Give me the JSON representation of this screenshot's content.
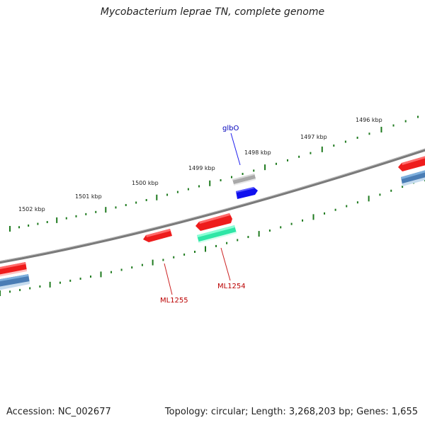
{
  "title": "Mycobacterium leprae TN, complete genome",
  "footer": {
    "accession": "Accession: NC_002677",
    "summary": "Topology: circular; Length: 3,268,203 bp; Genes: 1,655"
  },
  "ruler_labels": [
    "1502 kbp",
    "1501 kbp",
    "1500 kbp",
    "1499 kbp",
    "1498 kbp",
    "1497 kbp",
    "1496 kbp"
  ],
  "gene_labels": {
    "glbO": "glbO",
    "ML1254": "ML1254",
    "ML1255": "ML1255"
  },
  "colors": {
    "backbone": "#7a7a7a",
    "tick": "#1e7a1e",
    "cds_red": "#ee1c1c",
    "cds_blue": "#4a7db5",
    "cds_green": "#2ee6a6",
    "cds_darkblue": "#1010ee",
    "cds_gray": "#a8a8a8",
    "label_red": "#bb0000",
    "label_blue": "#0000bb"
  }
}
